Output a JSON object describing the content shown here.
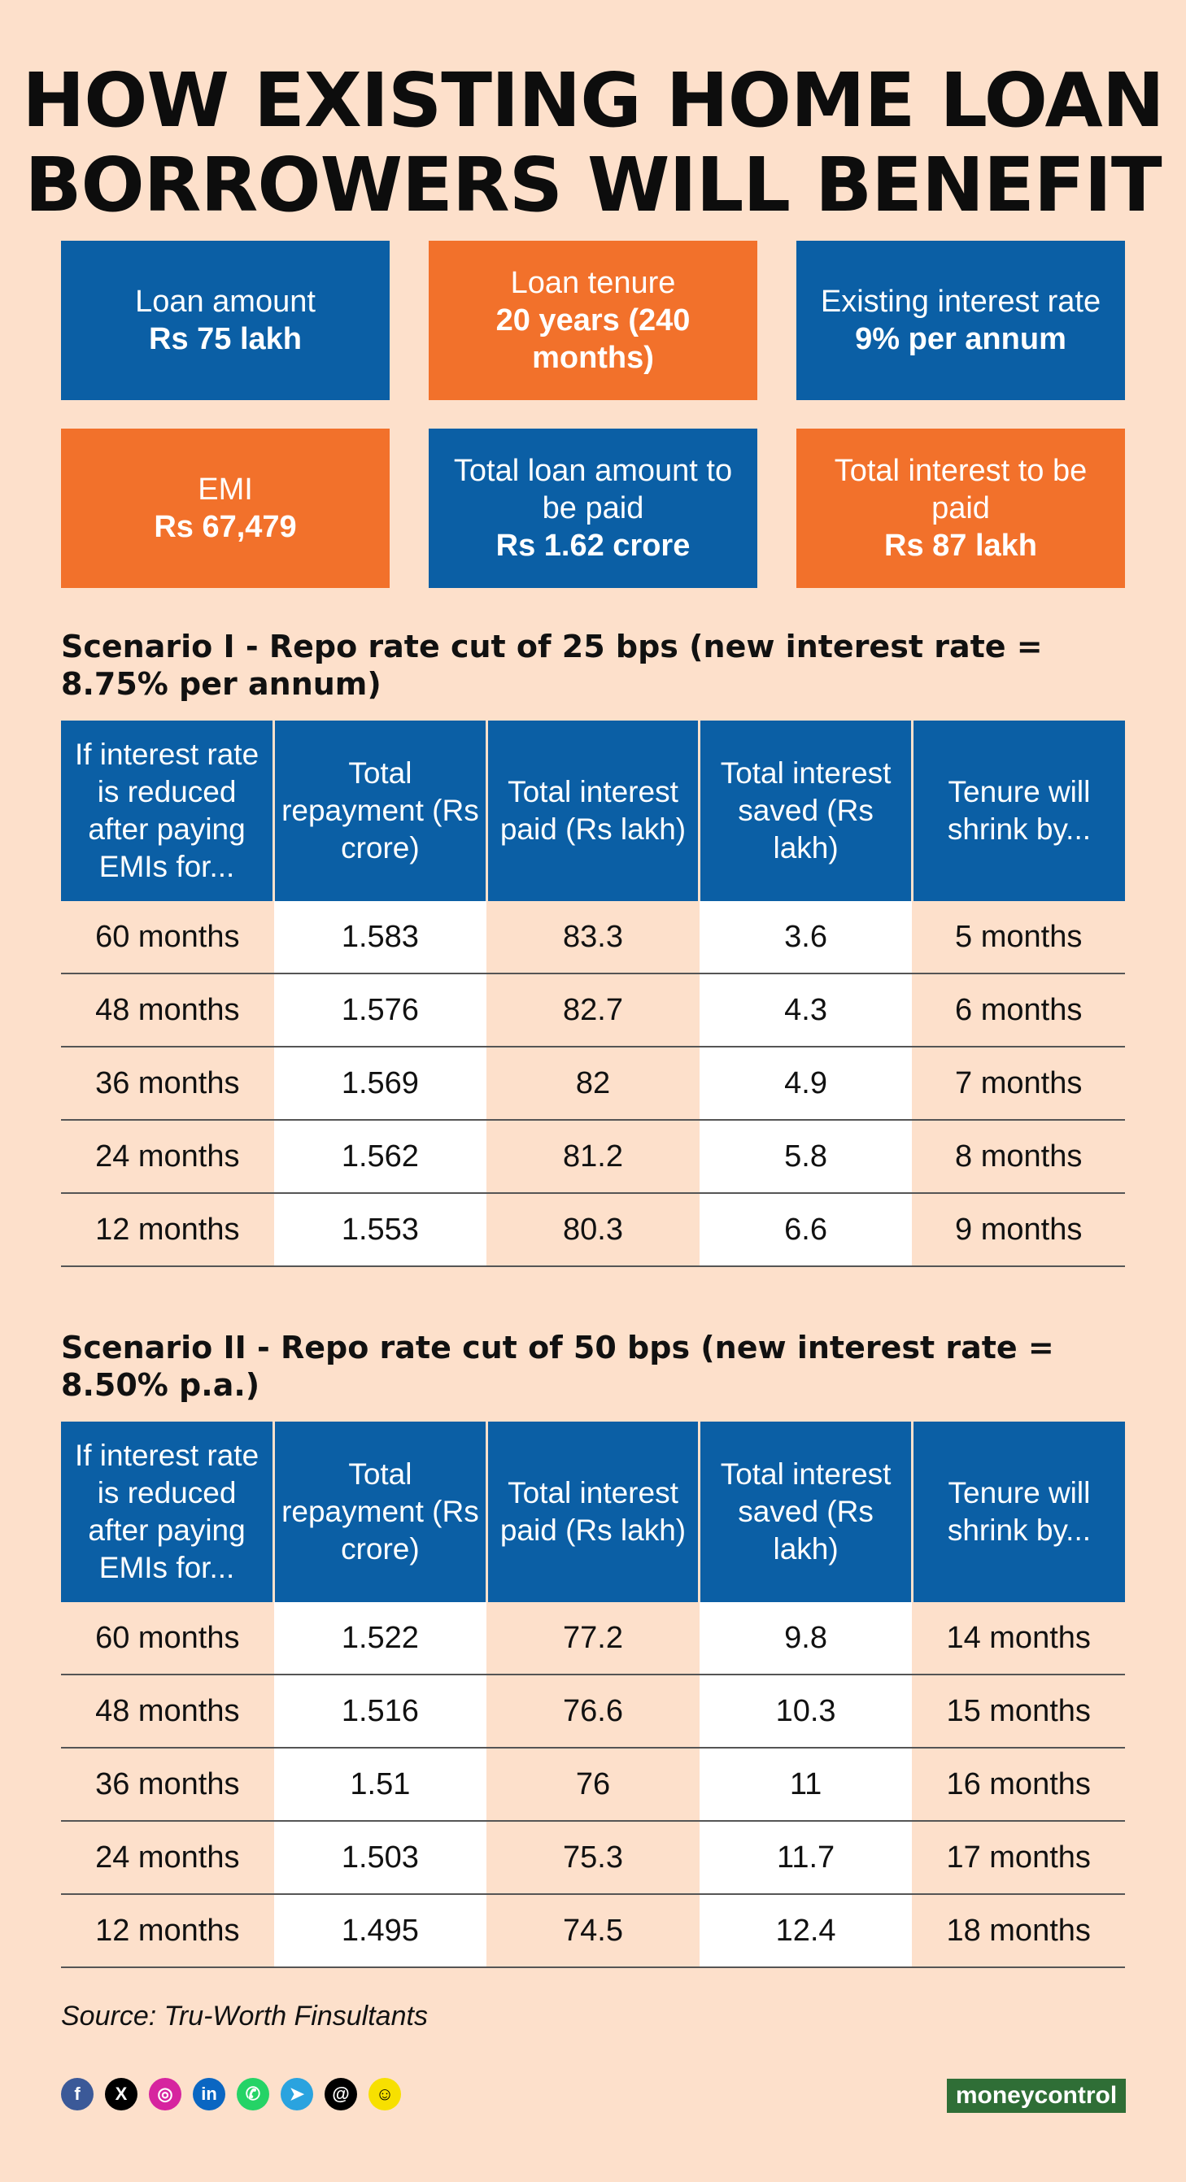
{
  "title": {
    "line1": "HOW EXISTING HOME LOAN",
    "line2": "BORROWERS WILL BENEFIT"
  },
  "facts": [
    {
      "label": "Loan amount",
      "value": "Rs 75 lakh",
      "color": "#0b5fa5"
    },
    {
      "label": "Loan tenure",
      "value": "20 years (240 months)",
      "color": "#f2712b"
    },
    {
      "label": "Existing interest rate",
      "value": "9% per annum",
      "color": "#0b5fa5"
    },
    {
      "label": "EMI",
      "value": "Rs 67,479",
      "color": "#f2712b"
    },
    {
      "label": "Total loan amount to be paid",
      "value": "Rs 1.62 crore",
      "color": "#0b5fa5"
    },
    {
      "label": "Total interest to be paid",
      "value": "Rs 87 lakh",
      "color": "#f2712b"
    }
  ],
  "scenario1": {
    "heading": "Scenario I - Repo rate cut of 25 bps (new interest rate = 8.75% per annum)",
    "headers": [
      "If interest rate is reduced after paying EMIs for...",
      "Total repayment (Rs crore)",
      "Total interest paid (Rs lakh)",
      "Total interest saved (Rs lakh)",
      "Tenure will shrink by..."
    ],
    "rows": [
      [
        "60 months",
        "1.583",
        "83.3",
        "3.6",
        "5 months"
      ],
      [
        "48 months",
        "1.576",
        "82.7",
        "4.3",
        "6 months"
      ],
      [
        "36 months",
        "1.569",
        "82",
        "4.9",
        "7 months"
      ],
      [
        "24 months",
        "1.562",
        "81.2",
        "5.8",
        "8 months"
      ],
      [
        "12 months",
        "1.553",
        "80.3",
        "6.6",
        "9 months"
      ]
    ]
  },
  "scenario2": {
    "heading": "Scenario II - Repo rate cut of 50 bps (new interest rate = 8.50% p.a.)",
    "headers": [
      "If interest rate is reduced after paying EMIs for...",
      "Total repayment (Rs crore)",
      "Total interest paid (Rs lakh)",
      "Total interest saved (Rs lakh)",
      "Tenure will shrink by..."
    ],
    "rows": [
      [
        "60 months",
        "1.522",
        "77.2",
        "9.8",
        "14 months"
      ],
      [
        "48 months",
        "1.516",
        "76.6",
        "10.3",
        "15 months"
      ],
      [
        "36 months",
        "1.51",
        "76",
        "11",
        "16 months"
      ],
      [
        "24 months",
        "1.503",
        "75.3",
        "11.7",
        "17 months"
      ],
      [
        "12 months",
        "1.495",
        "74.5",
        "12.4",
        "18 months"
      ]
    ]
  },
  "source": "Source: Tru-Worth Finsultants",
  "social_icons": [
    {
      "name": "facebook-icon",
      "glyph": "f",
      "color": "#3b5998"
    },
    {
      "name": "x-icon",
      "glyph": "X",
      "color": "#000000"
    },
    {
      "name": "instagram-icon",
      "glyph": "◎",
      "color": "#d6249f"
    },
    {
      "name": "linkedin-icon",
      "glyph": "in",
      "color": "#0a66c2"
    },
    {
      "name": "whatsapp-icon",
      "glyph": "✆",
      "color": "#25d366"
    },
    {
      "name": "telegram-icon",
      "glyph": "➤",
      "color": "#2aa3df"
    },
    {
      "name": "threads-icon",
      "glyph": "@",
      "color": "#000000"
    },
    {
      "name": "snapchat-icon",
      "glyph": "☺",
      "color": "#f7e000"
    }
  ],
  "logo": {
    "part1": "money",
    "part2": "control"
  }
}
